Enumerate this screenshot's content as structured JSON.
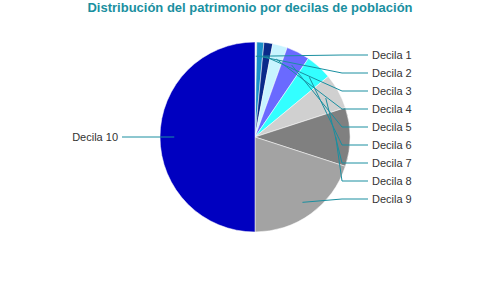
{
  "chart_data": {
    "type": "pie",
    "title": "Distribución del patrimonio por decilas de población",
    "categories": [
      "Decila 1",
      "Decila 2",
      "Decila 3",
      "Decila 4",
      "Decila 5",
      "Decila 6",
      "Decila 7",
      "Decila 8",
      "Decila 9",
      "Decila 10"
    ],
    "values": [
      0.3,
      1.2,
      1.5,
      2.5,
      4,
      4.5,
      6,
      10,
      20,
      50
    ],
    "colors": [
      "#e8f6fb",
      "#1a8fc9",
      "#0a2a8a",
      "#c8f4ff",
      "#6a6aff",
      "#33ffff",
      "#d0d0d0",
      "#808080",
      "#a3a3a3",
      "#0000c0"
    ]
  }
}
